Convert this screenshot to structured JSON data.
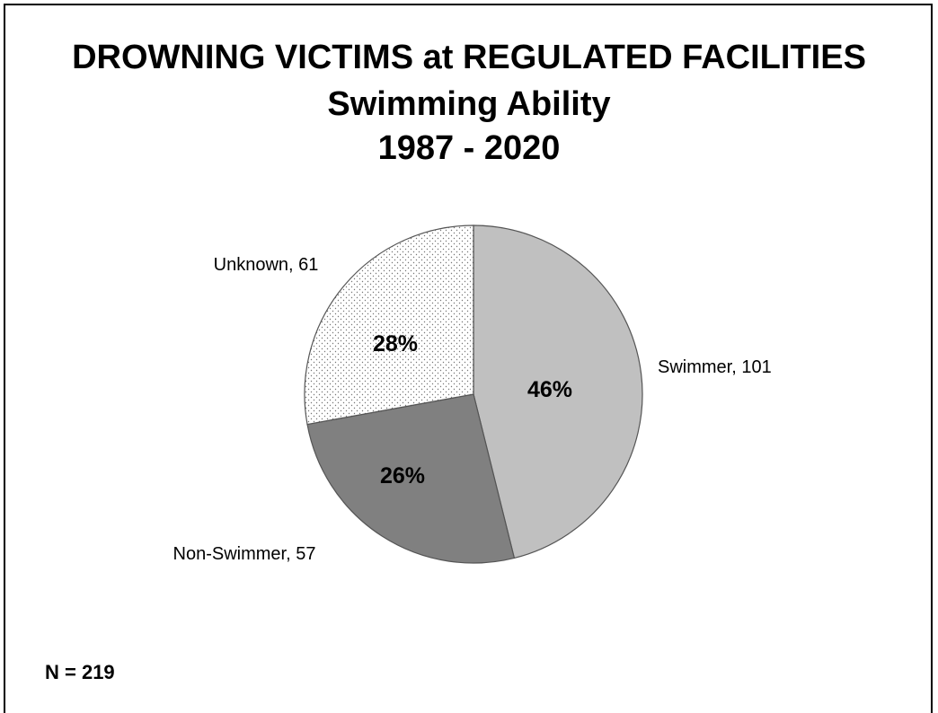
{
  "chart_data": {
    "type": "pie",
    "title": "DROWNING VICTIMS at REGULATED FACILITIES",
    "subtitle": "Swimming Ability",
    "period": "1987 - 2020",
    "start_angle_deg": 0,
    "direction": "clockwise",
    "slices": [
      {
        "label": "Swimmer",
        "value": 101,
        "percent_label": "46%",
        "data_label": "Swimmer, 101",
        "fill": "#c0c0c0",
        "pattern": "solid"
      },
      {
        "label": "Non-Swimmer",
        "value": 57,
        "percent_label": "26%",
        "data_label": "Non-Swimmer, 57",
        "fill": "#808080",
        "pattern": "solid"
      },
      {
        "label": "Unknown",
        "value": 61,
        "percent_label": "28%",
        "data_label": "Unknown, 61",
        "fill": "#ffffff",
        "pattern": "dots"
      }
    ],
    "total": 219,
    "footnote": "N = 219"
  }
}
